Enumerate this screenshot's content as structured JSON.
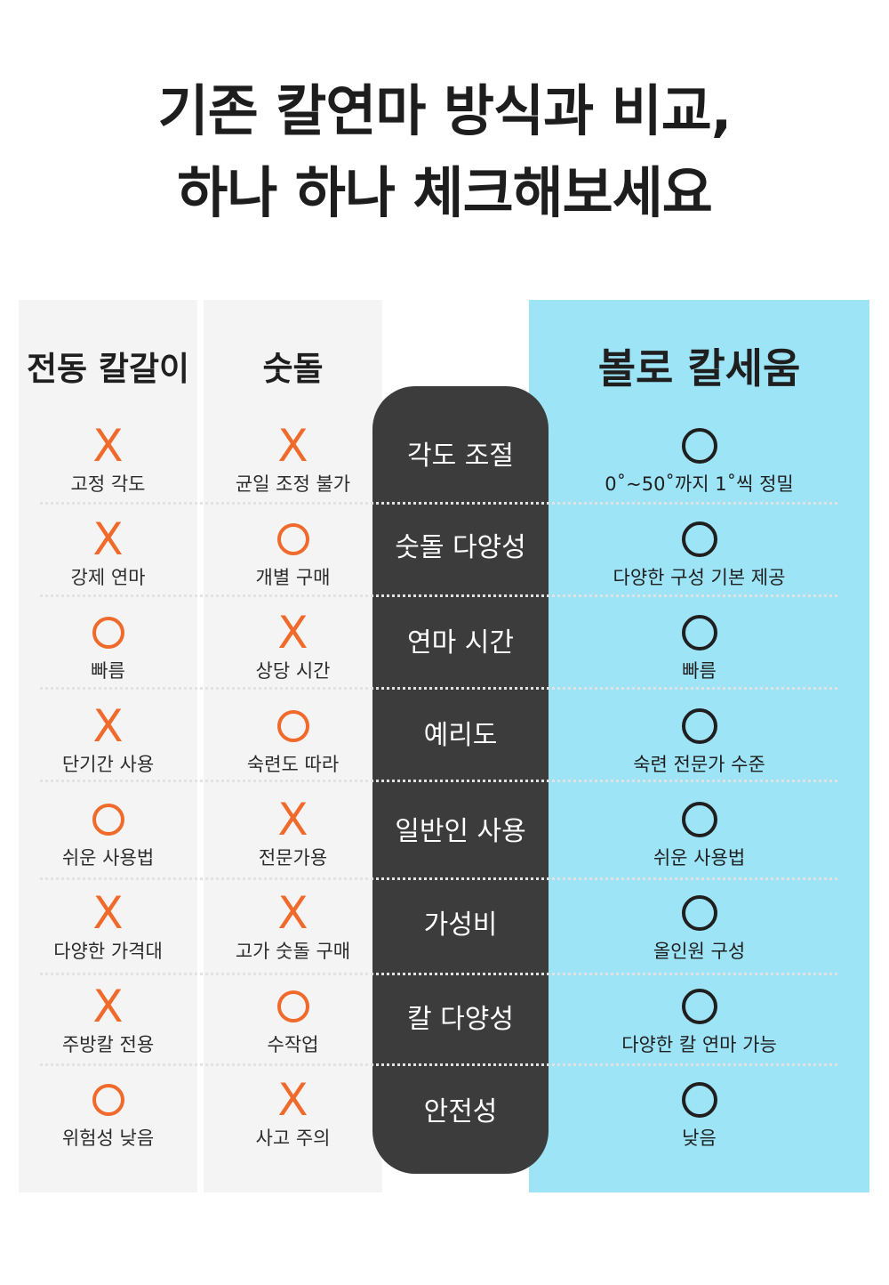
{
  "title": {
    "line1": "기존 칼연마 방식과 비교,",
    "line2": "하나 하나 체크해보세요"
  },
  "columns": {
    "electric": "전동 칼갈이",
    "whetstone": "숫돌",
    "bollo": "볼로 칼세움"
  },
  "colors": {
    "accent_orange": "#ef6a2b",
    "highlight_blue": "#9ee4f7",
    "criteria_dark": "#3c3c3c"
  },
  "rows": [
    {
      "criterion": "각도 조절",
      "electric": {
        "mark": "X",
        "text": "고정 각도"
      },
      "whetstone": {
        "mark": "X",
        "text": "균일 조정 불가"
      },
      "bollo": {
        "mark": "O",
        "text": "0˚~50˚까지 1˚씩 정밀"
      }
    },
    {
      "criterion": "숫돌 다양성",
      "electric": {
        "mark": "X",
        "text": "강제 연마"
      },
      "whetstone": {
        "mark": "O",
        "text": "개별 구매"
      },
      "bollo": {
        "mark": "O",
        "text": "다양한 구성 기본 제공"
      }
    },
    {
      "criterion": "연마 시간",
      "electric": {
        "mark": "O",
        "text": "빠름"
      },
      "whetstone": {
        "mark": "X",
        "text": "상당 시간"
      },
      "bollo": {
        "mark": "O",
        "text": "빠름"
      }
    },
    {
      "criterion": "예리도",
      "electric": {
        "mark": "X",
        "text": "단기간 사용"
      },
      "whetstone": {
        "mark": "O",
        "text": "숙련도 따라"
      },
      "bollo": {
        "mark": "O",
        "text": "숙련 전문가 수준"
      }
    },
    {
      "criterion": "일반인 사용",
      "electric": {
        "mark": "O",
        "text": "쉬운 사용법"
      },
      "whetstone": {
        "mark": "X",
        "text": "전문가용"
      },
      "bollo": {
        "mark": "O",
        "text": "쉬운 사용법"
      }
    },
    {
      "criterion": "가성비",
      "electric": {
        "mark": "X",
        "text": "다양한 가격대"
      },
      "whetstone": {
        "mark": "X",
        "text": "고가 숫돌 구매"
      },
      "bollo": {
        "mark": "O",
        "text": "올인원 구성"
      }
    },
    {
      "criterion": "칼 다양성",
      "electric": {
        "mark": "X",
        "text": "주방칼 전용"
      },
      "whetstone": {
        "mark": "O",
        "text": "수작업"
      },
      "bollo": {
        "mark": "O",
        "text": "다양한 칼 연마 가능"
      }
    },
    {
      "criterion": "안전성",
      "electric": {
        "mark": "O",
        "text": "위험성 낮음"
      },
      "whetstone": {
        "mark": "X",
        "text": "사고 주의"
      },
      "bollo": {
        "mark": "O",
        "text": "낮음"
      }
    }
  ]
}
